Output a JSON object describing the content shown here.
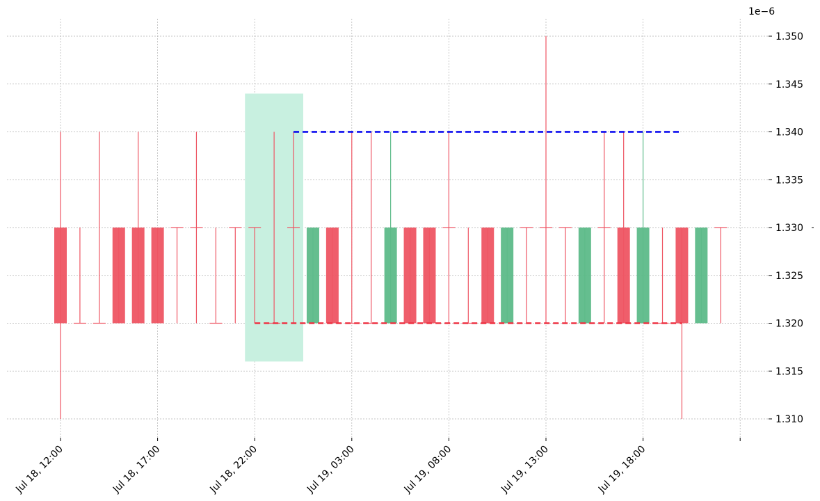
{
  "chart_data": {
    "type": "candlestick",
    "y_multiplier_label": "1e−6",
    "ylim": [
      1.3085,
      1.352
    ],
    "y_ticks": [
      1.31,
      1.315,
      1.32,
      1.325,
      1.33,
      1.335,
      1.34,
      1.345,
      1.35
    ],
    "y_tick_labels": [
      "1.310",
      "1.315",
      "1.320",
      "1.325",
      "1.330",
      "1.335",
      "1.340",
      "1.345",
      "1.350"
    ],
    "x_ticks": [
      "Jul 18, 12:00",
      "Jul 18, 17:00",
      "Jul 18, 22:00",
      "Jul 19, 03:00",
      "Jul 19, 08:00",
      "Jul 19, 13:00",
      "Jul 19, 18:00",
      ""
    ],
    "x_tick_times": [
      "2024-07-18T12:00",
      "2024-07-18T17:00",
      "2024-07-18T22:00",
      "2024-07-19T03:00",
      "2024-07-19T08:00",
      "2024-07-19T13:00",
      "2024-07-19T18:00",
      "2024-07-19T23:00"
    ],
    "grid": true,
    "colors": {
      "up": "#5dbb89",
      "down": "#ee5563",
      "highlight": "#c8f0e0",
      "resistance": "#0000ee",
      "support": "#ee3344",
      "grid": "#b0b0b0"
    },
    "candles": [
      {
        "t": "2024-07-18T12:00",
        "o": 1.33,
        "h": 1.34,
        "l": 1.31,
        "c": 1.32
      },
      {
        "t": "2024-07-18T13:00",
        "o": 1.32,
        "h": 1.33,
        "l": 1.32,
        "c": 1.32
      },
      {
        "t": "2024-07-18T14:00",
        "o": 1.32,
        "h": 1.34,
        "l": 1.32,
        "c": 1.32
      },
      {
        "t": "2024-07-18T15:00",
        "o": 1.33,
        "h": 1.33,
        "l": 1.32,
        "c": 1.32
      },
      {
        "t": "2024-07-18T16:00",
        "o": 1.33,
        "h": 1.34,
        "l": 1.32,
        "c": 1.32
      },
      {
        "t": "2024-07-18T17:00",
        "o": 1.33,
        "h": 1.33,
        "l": 1.32,
        "c": 1.32
      },
      {
        "t": "2024-07-18T18:00",
        "o": 1.33,
        "h": 1.33,
        "l": 1.32,
        "c": 1.33
      },
      {
        "t": "2024-07-18T19:00",
        "o": 1.33,
        "h": 1.34,
        "l": 1.32,
        "c": 1.33
      },
      {
        "t": "2024-07-18T20:00",
        "o": 1.32,
        "h": 1.33,
        "l": 1.32,
        "c": 1.32
      },
      {
        "t": "2024-07-18T21:00",
        "o": 1.33,
        "h": 1.33,
        "l": 1.32,
        "c": 1.33
      },
      {
        "t": "2024-07-18T22:00",
        "o": 1.33,
        "h": 1.33,
        "l": 1.32,
        "c": 1.33
      },
      {
        "t": "2024-07-18T23:00",
        "o": 1.32,
        "h": 1.34,
        "l": 1.32,
        "c": 1.32
      },
      {
        "t": "2024-07-19T00:00",
        "o": 1.33,
        "h": 1.34,
        "l": 1.32,
        "c": 1.33
      },
      {
        "t": "2024-07-19T01:00",
        "o": 1.32,
        "h": 1.33,
        "l": 1.32,
        "c": 1.33
      },
      {
        "t": "2024-07-19T02:00",
        "o": 1.33,
        "h": 1.33,
        "l": 1.32,
        "c": 1.32
      },
      {
        "t": "2024-07-19T03:00",
        "o": 1.32,
        "h": 1.34,
        "l": 1.32,
        "c": 1.32
      },
      {
        "t": "2024-07-19T04:00",
        "o": 1.32,
        "h": 1.34,
        "l": 1.32,
        "c": 1.32
      },
      {
        "t": "2024-07-19T05:00",
        "o": 1.32,
        "h": 1.34,
        "l": 1.32,
        "c": 1.33
      },
      {
        "t": "2024-07-19T06:00",
        "o": 1.33,
        "h": 1.33,
        "l": 1.32,
        "c": 1.32
      },
      {
        "t": "2024-07-19T07:00",
        "o": 1.33,
        "h": 1.33,
        "l": 1.32,
        "c": 1.32
      },
      {
        "t": "2024-07-19T08:00",
        "o": 1.33,
        "h": 1.34,
        "l": 1.32,
        "c": 1.33
      },
      {
        "t": "2024-07-19T09:00",
        "o": 1.32,
        "h": 1.33,
        "l": 1.32,
        "c": 1.32
      },
      {
        "t": "2024-07-19T10:00",
        "o": 1.33,
        "h": 1.33,
        "l": 1.32,
        "c": 1.32
      },
      {
        "t": "2024-07-19T11:00",
        "o": 1.32,
        "h": 1.33,
        "l": 1.32,
        "c": 1.33
      },
      {
        "t": "2024-07-19T12:00",
        "o": 1.33,
        "h": 1.33,
        "l": 1.32,
        "c": 1.33
      },
      {
        "t": "2024-07-19T13:00",
        "o": 1.33,
        "h": 1.35,
        "l": 1.32,
        "c": 1.33
      },
      {
        "t": "2024-07-19T14:00",
        "o": 1.33,
        "h": 1.33,
        "l": 1.32,
        "c": 1.33
      },
      {
        "t": "2024-07-19T15:00",
        "o": 1.32,
        "h": 1.33,
        "l": 1.32,
        "c": 1.33
      },
      {
        "t": "2024-07-19T16:00",
        "o": 1.33,
        "h": 1.34,
        "l": 1.32,
        "c": 1.33
      },
      {
        "t": "2024-07-19T17:00",
        "o": 1.33,
        "h": 1.34,
        "l": 1.32,
        "c": 1.32
      },
      {
        "t": "2024-07-19T18:00",
        "o": 1.32,
        "h": 1.34,
        "l": 1.32,
        "c": 1.33
      },
      {
        "t": "2024-07-19T19:00",
        "o": 1.32,
        "h": 1.33,
        "l": 1.32,
        "c": 1.32
      },
      {
        "t": "2024-07-19T20:00",
        "o": 1.33,
        "h": 1.33,
        "l": 1.31,
        "c": 1.32
      },
      {
        "t": "2024-07-19T21:00",
        "o": 1.32,
        "h": 1.33,
        "l": 1.32,
        "c": 1.33
      },
      {
        "t": "2024-07-19T22:00",
        "o": 1.33,
        "h": 1.33,
        "l": 1.32,
        "c": 1.33
      }
    ],
    "highlight_zone": {
      "t_start": "2024-07-18T21:30",
      "t_end": "2024-07-19T00:30",
      "y_low": 1.316,
      "y_high": 1.344
    },
    "resistance_line": {
      "t_start": "2024-07-19T00:00",
      "t_end": "2024-07-19T20:00",
      "y": 1.34
    },
    "support_line": {
      "t_start": "2024-07-18T22:00",
      "t_end": "2024-07-19T20:00",
      "y": 1.32
    }
  }
}
